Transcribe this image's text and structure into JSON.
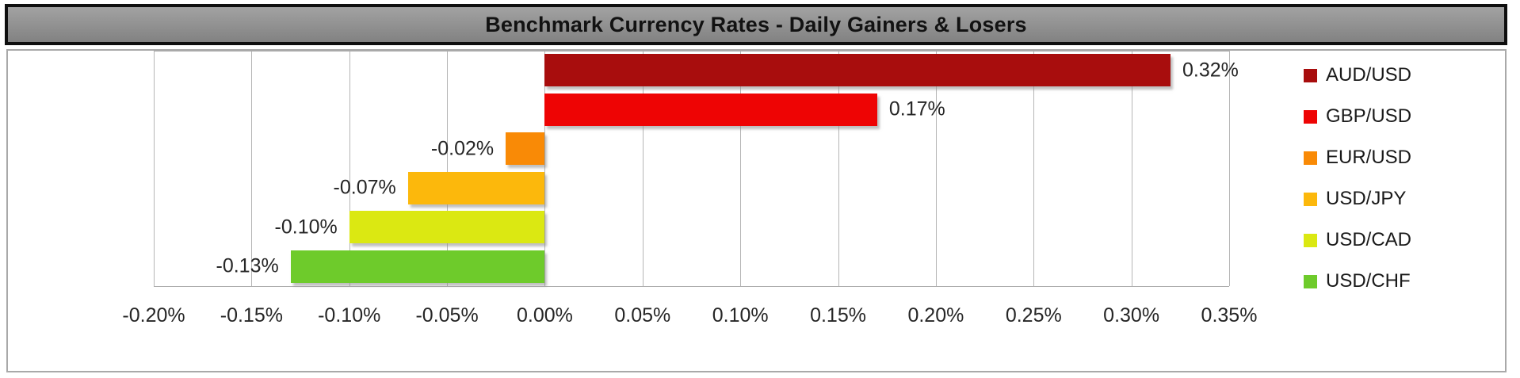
{
  "title": "Benchmark Currency Rates - Daily Gainers & Losers",
  "chart_data": {
    "type": "bar",
    "orientation": "horizontal",
    "title": "Benchmark Currency Rates - Daily Gainers & Losers",
    "categories": [
      "AUD/USD",
      "GBP/USD",
      "EUR/USD",
      "USD/JPY",
      "USD/CAD",
      "USD/CHF"
    ],
    "values": [
      0.32,
      0.17,
      -0.02,
      -0.07,
      -0.1,
      -0.13
    ],
    "data_labels": [
      "0.32%",
      "0.17%",
      "-0.02%",
      "-0.07%",
      "-0.10%",
      "-0.13%"
    ],
    "bar_colors": [
      "#a80d0d",
      "#ee0404",
      "#f98a06",
      "#fcb80c",
      "#dbe812",
      "#6ecb2b"
    ],
    "xlim": [
      -0.2,
      0.35
    ],
    "tick_step": 0.05,
    "x_tick_labels": [
      "-0.20%",
      "-0.15%",
      "-0.10%",
      "-0.05%",
      "0.00%",
      "0.05%",
      "0.10%",
      "0.15%",
      "0.20%",
      "0.25%",
      "0.30%",
      "0.35%"
    ],
    "legend_entries": [
      "AUD/USD",
      "GBP/USD",
      "EUR/USD",
      "USD/JPY",
      "USD/CAD",
      "USD/CHF"
    ],
    "legend_position": "right",
    "grid": true
  },
  "colors": {
    "title_bar_background": "#8b8b8b",
    "title_bar_border": "#0f0f0f",
    "chart_border": "#a9a9a9",
    "gridline": "#b5b5b5",
    "label_text": "#262626"
  }
}
